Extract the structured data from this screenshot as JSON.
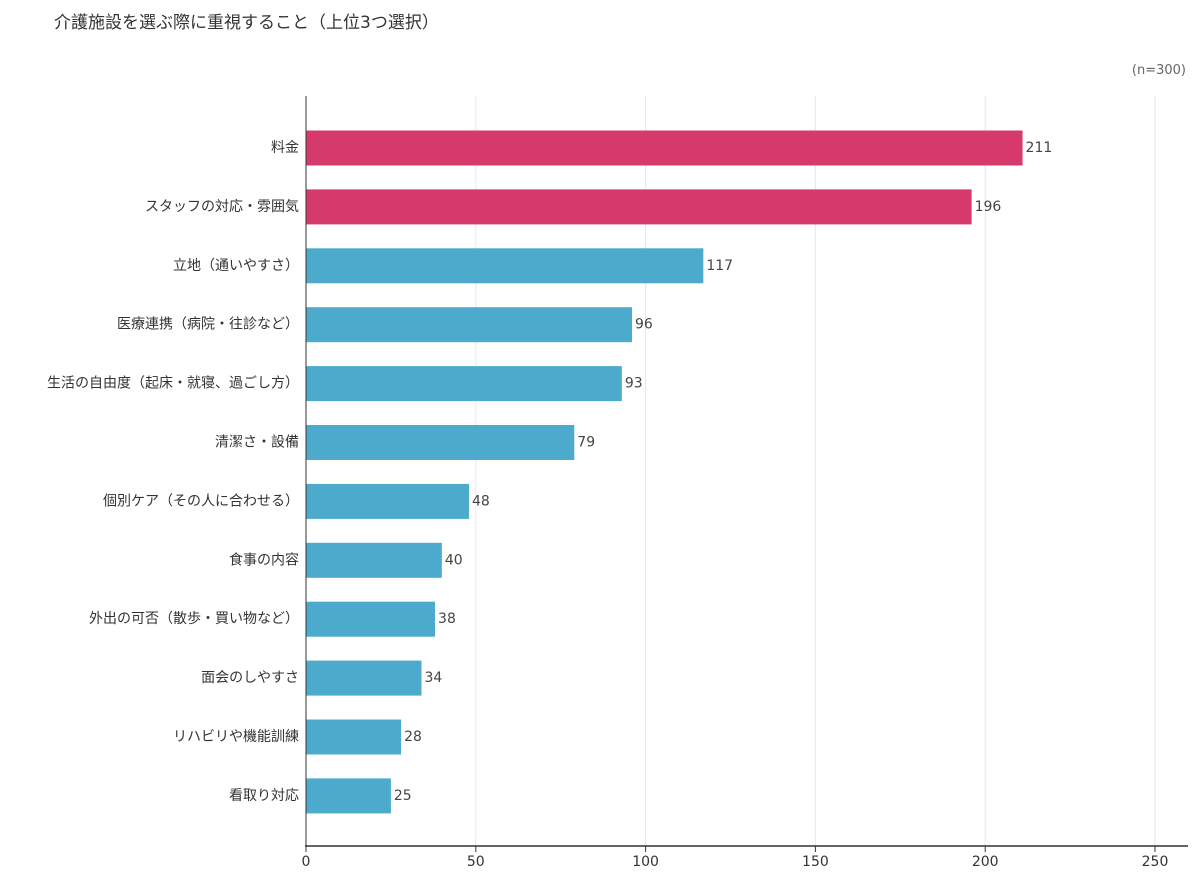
{
  "chart_data": {
    "type": "bar",
    "orientation": "horizontal",
    "title": "介護施設を選ぶ際に重視すること（上位3つ選択）",
    "note": "(n=300)",
    "xlabel": "",
    "ylabel": "",
    "xlim": [
      0,
      250
    ],
    "xticks": [
      0,
      50,
      100,
      150,
      200,
      250
    ],
    "grid": true,
    "categories": [
      "料金",
      "スタッフの対応・雰囲気",
      "立地（通いやすさ）",
      "医療連携（病院・往診など）",
      "生活の自由度（起床・就寝、過ごし方）",
      "清潔さ・設備",
      "個別ケア（その人に合わせる）",
      "食事の内容",
      "外出の可否（散歩・買い物など）",
      "面会のしやすさ",
      "リハビリや機能訓練",
      "看取り対応"
    ],
    "values": [
      211,
      196,
      117,
      96,
      93,
      79,
      48,
      40,
      38,
      34,
      28,
      25
    ],
    "colors": {
      "highlight": "#d63a6b",
      "default": "#4cabcd",
      "grid": "#e6e6ee",
      "axis": "#333333"
    },
    "highlight_top": 2
  }
}
